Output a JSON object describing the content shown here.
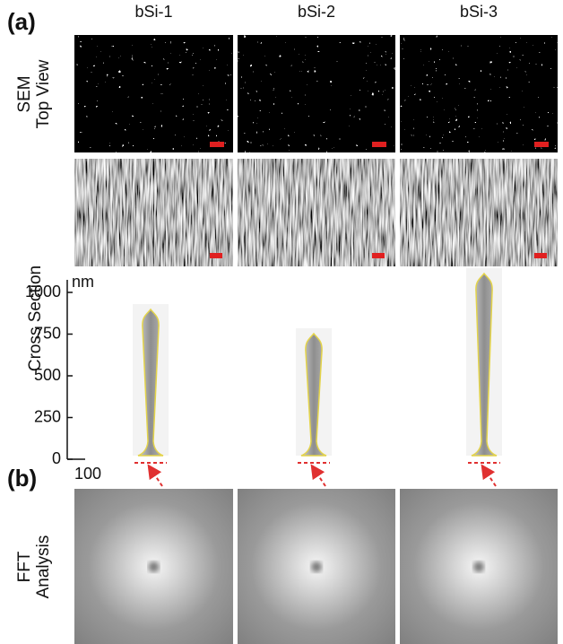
{
  "panel_a": {
    "label": "(a)",
    "columns": [
      "bSi-1",
      "bSi-2",
      "bSi-3"
    ],
    "rows": {
      "sem": [
        "SEM",
        "Top View"
      ],
      "cross_section": "Cross Section"
    },
    "axis": {
      "unit": "nm",
      "ticks": [
        0,
        250,
        500,
        750,
        1000
      ],
      "scale_bar": 100
    }
  },
  "panel_b": {
    "label": "(b)",
    "row": [
      "FFT",
      "Analysis"
    ]
  }
}
